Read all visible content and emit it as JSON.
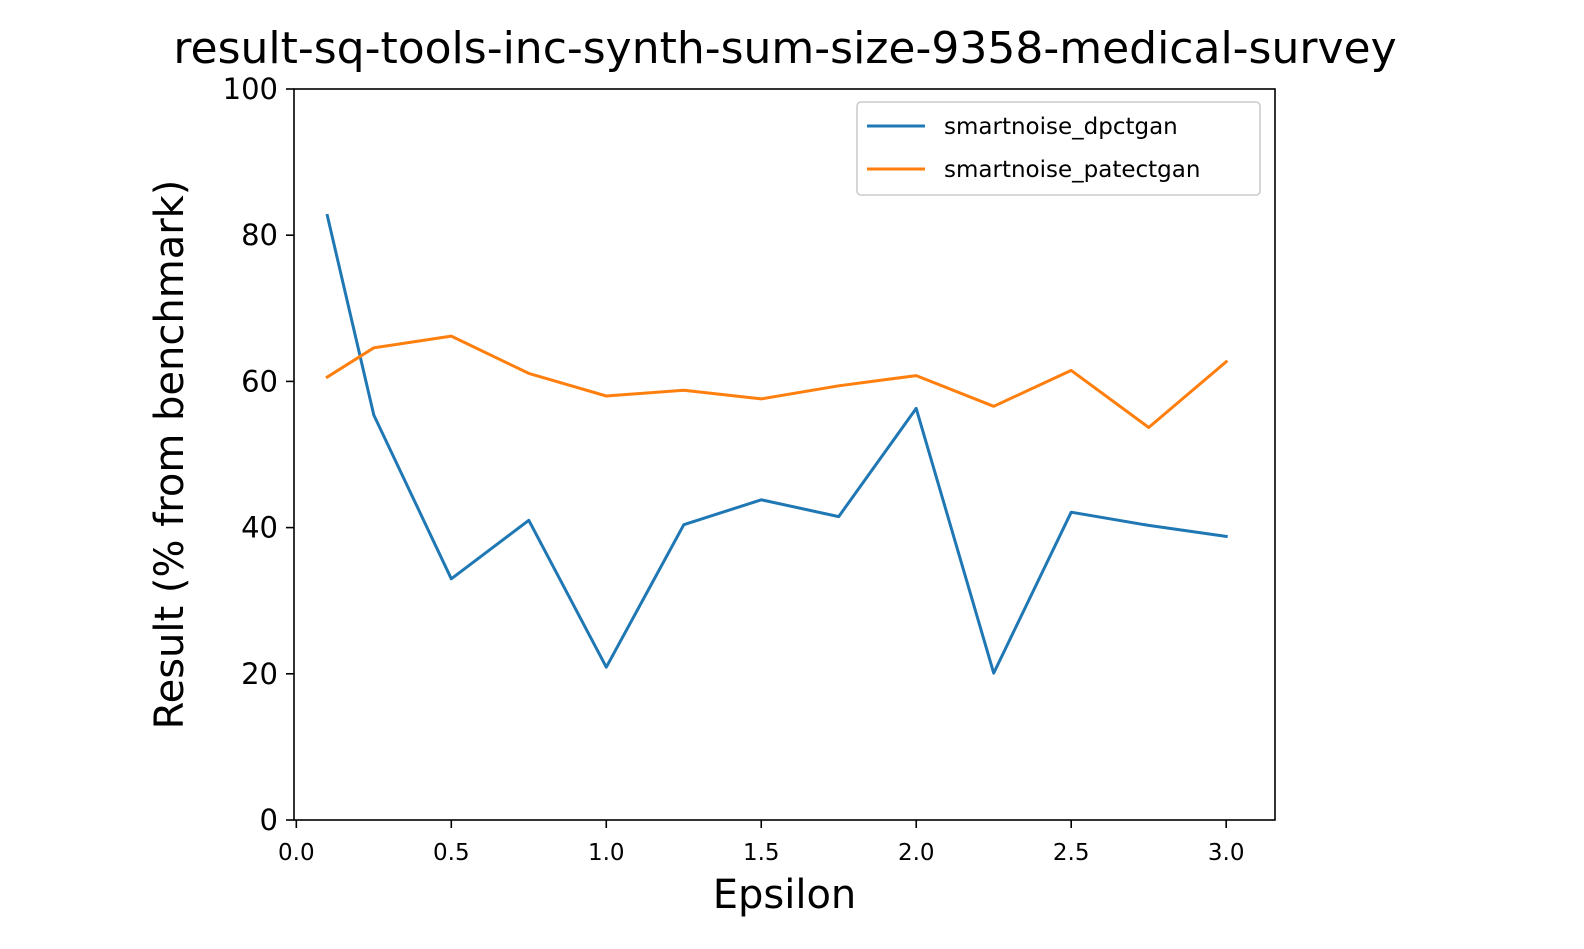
{
  "chart_data": {
    "type": "line",
    "title": "result-sq-tools-inc-synth-sum-size-9358-medical-survey",
    "xlabel": "Epsilon",
    "ylabel": "Result (% from benchmark)",
    "xlim": [
      -0.0075,
      3.1575
    ],
    "ylim": [
      0,
      100
    ],
    "xticks": [
      0.0,
      0.5,
      1.0,
      1.5,
      2.0,
      2.5,
      3.0
    ],
    "xtick_labels": [
      "0.0",
      "0.5",
      "1.0",
      "1.5",
      "2.0",
      "2.5",
      "3.0"
    ],
    "yticks": [
      0,
      20,
      40,
      60,
      80,
      100
    ],
    "ytick_labels": [
      "0",
      "20",
      "40",
      "60",
      "80",
      "100"
    ],
    "grid": false,
    "legend_position": "top-right",
    "x": [
      0.1,
      0.25,
      0.5,
      0.75,
      1.0,
      1.25,
      1.5,
      1.75,
      2.0,
      2.25,
      2.5,
      2.75,
      3.0
    ],
    "series": [
      {
        "name": "smartnoise_dpctgan",
        "color": "#1f77b4",
        "values": [
          82.7,
          55.4,
          33.0,
          41.0,
          20.9,
          40.4,
          43.8,
          41.5,
          56.3,
          20.1,
          42.1,
          40.3,
          38.8
        ]
      },
      {
        "name": "smartnoise_patectgan",
        "color": "#ff7f0e",
        "values": [
          60.6,
          64.6,
          66.2,
          61.1,
          58.0,
          58.8,
          57.6,
          59.4,
          60.8,
          56.6,
          61.5,
          53.7,
          62.7
        ]
      }
    ]
  }
}
